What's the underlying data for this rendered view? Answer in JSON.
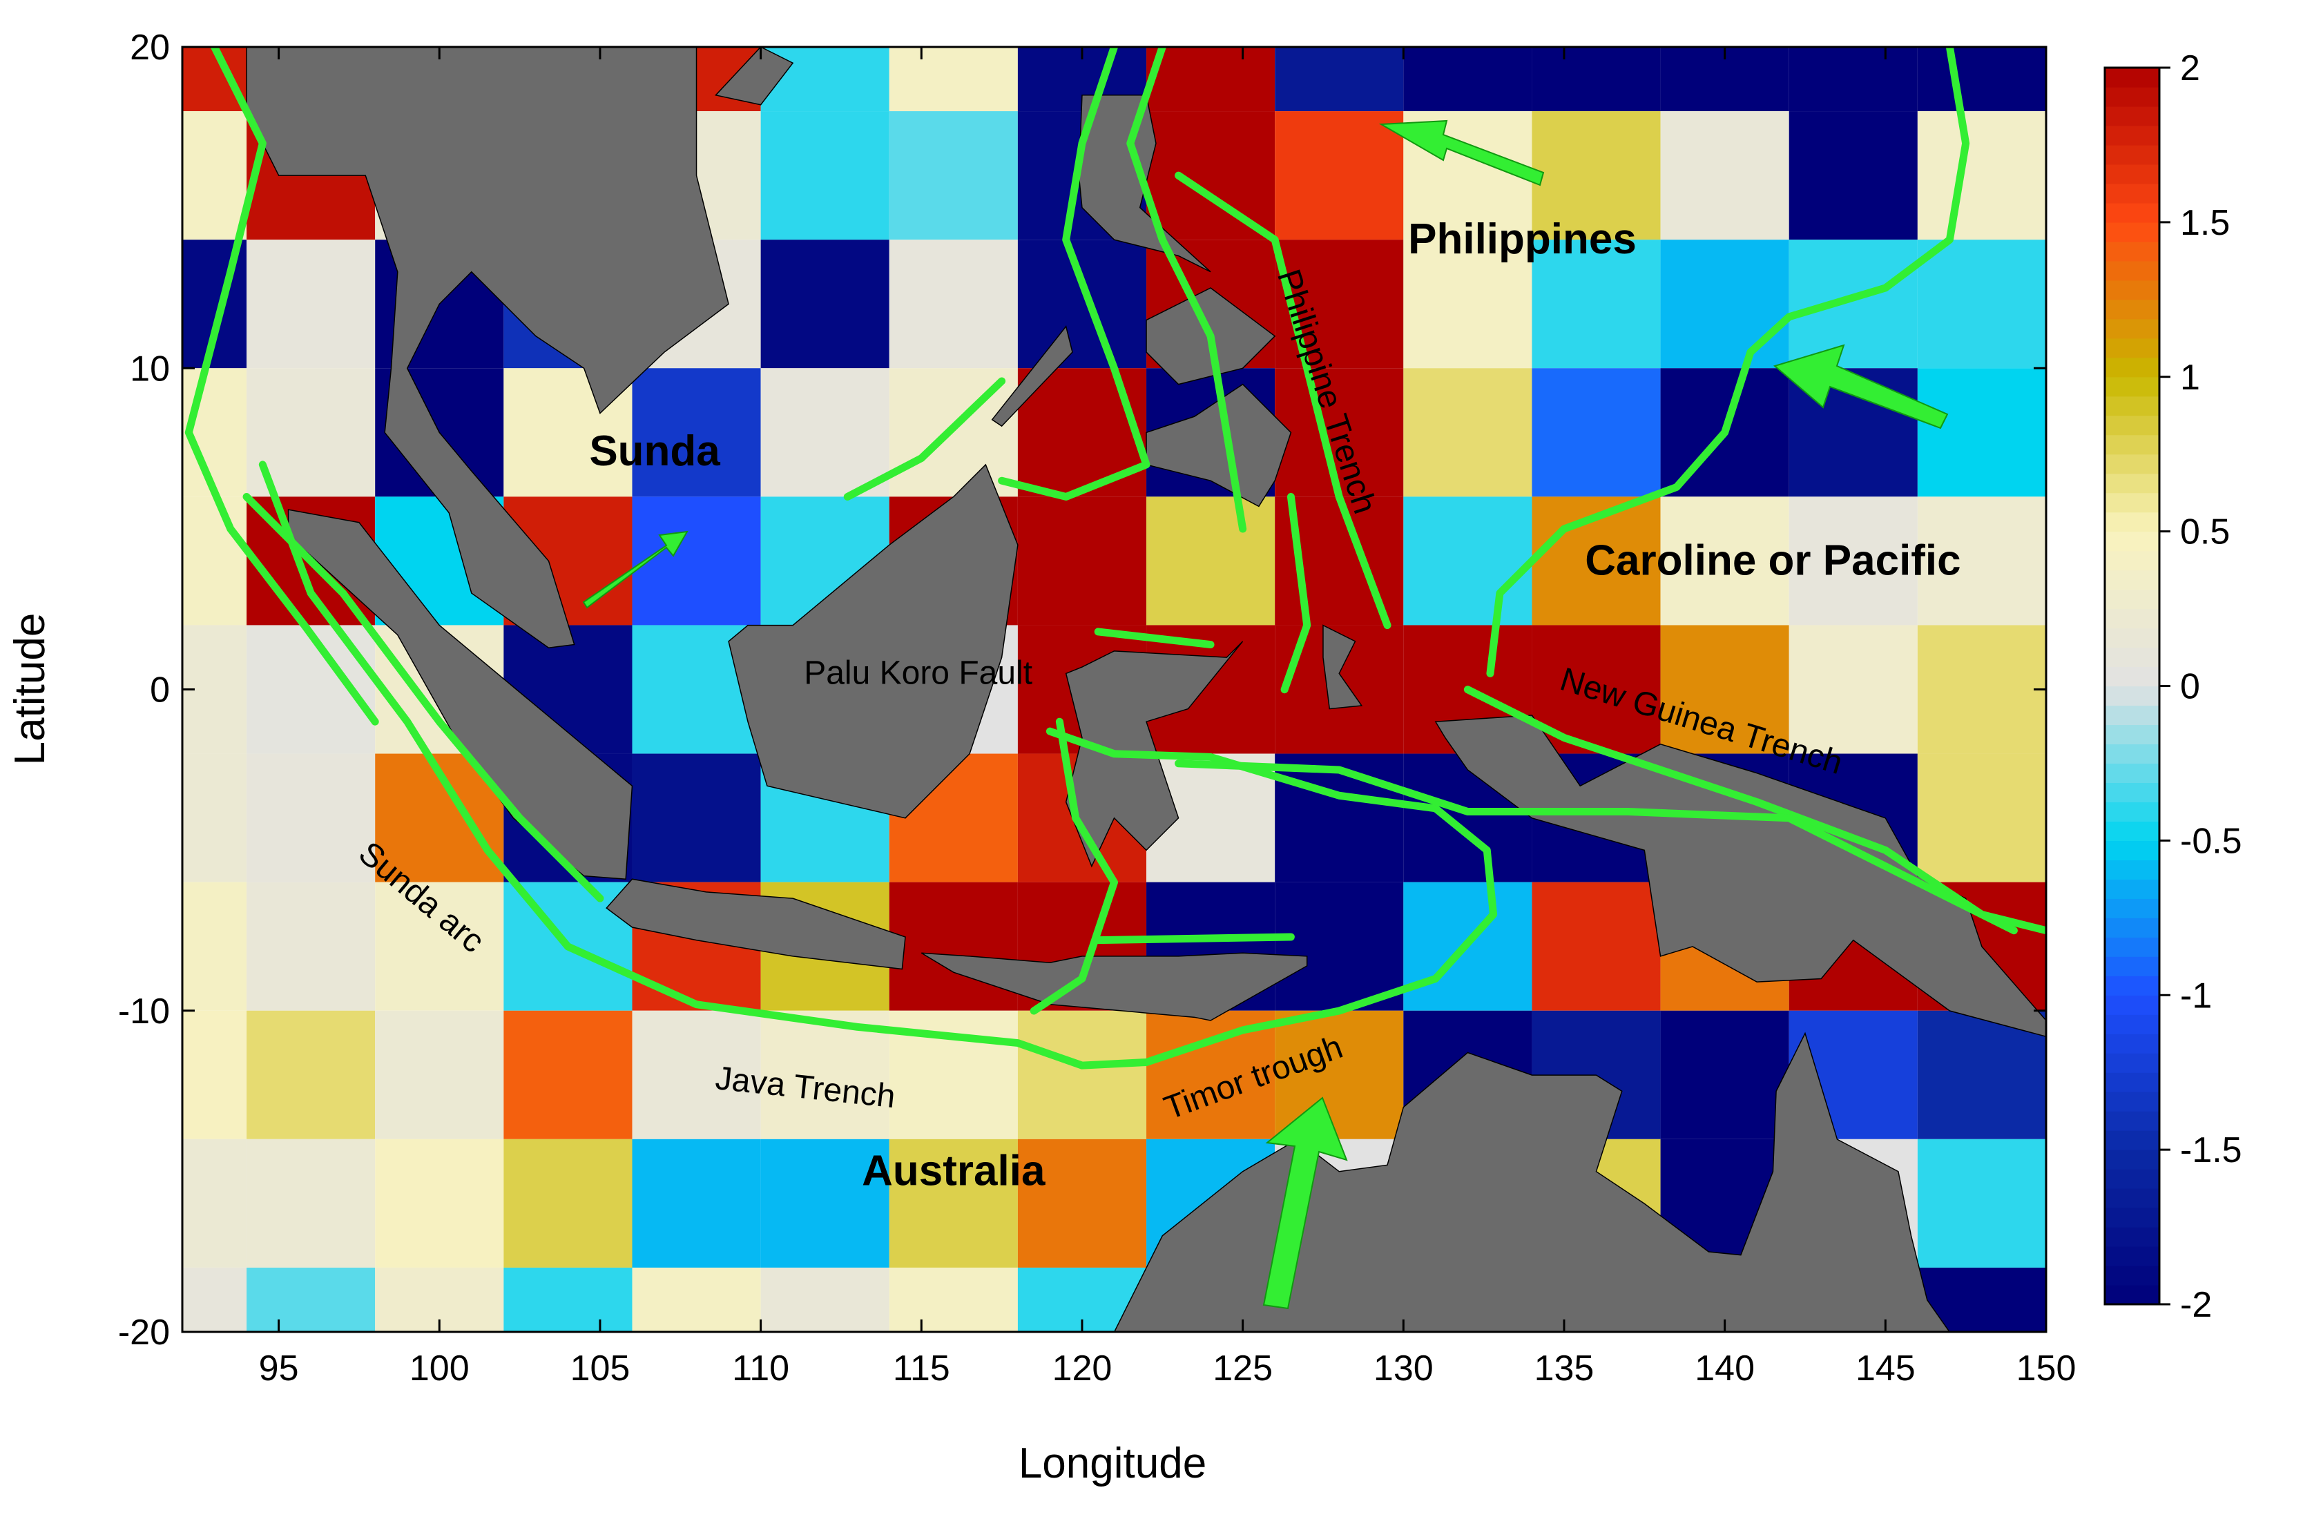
{
  "chart_data": {
    "type": "heatmap",
    "xlabel": "Longitude",
    "ylabel": "Latitude",
    "x_edges": [
      92,
      94,
      98,
      102,
      106,
      110,
      114,
      118,
      122,
      126,
      130,
      134,
      138,
      142,
      146,
      150
    ],
    "y_edges": [
      20,
      18,
      14,
      10,
      6,
      2,
      -2,
      -6,
      -10,
      -14,
      -18,
      -20
    ],
    "z": [
      [
        1.8,
        0,
        0,
        0,
        1.8,
        -0.4,
        0.4,
        -1.9,
        2,
        -1.7,
        -2,
        -2,
        -2,
        -2,
        -2
      ],
      [
        0.4,
        1.9,
        0.2,
        0.2,
        0.2,
        -0.4,
        -0.3,
        -1.9,
        2,
        1.6,
        0.4,
        0.8,
        0.15,
        -2,
        0.35
      ],
      [
        -1.9,
        0.1,
        -2,
        -1.4,
        0.1,
        -1.9,
        0.1,
        -1.9,
        2,
        2,
        0.4,
        -0.4,
        -0.6,
        -0.4,
        -0.4
      ],
      [
        0.4,
        0.15,
        -2,
        0.4,
        -1.3,
        0.1,
        0.3,
        2,
        -2,
        2,
        0.7,
        -0.9,
        -2,
        -1.8,
        -0.5
      ],
      [
        0.4,
        2,
        -0.5,
        1.8,
        -1,
        -0.4,
        2,
        2,
        0.8,
        2,
        -0.4,
        1.2,
        0.35,
        0.1,
        0.25
      ],
      [
        0.2,
        0.05,
        0.3,
        -1.9,
        -0.4,
        0,
        0,
        2,
        2,
        2,
        2,
        2,
        1.2,
        0.3,
        0.7
      ],
      [
        0.2,
        0.1,
        1.3,
        -1.9,
        -1.8,
        -0.4,
        1.4,
        1.8,
        0.1,
        -2,
        -2,
        -2,
        -2,
        -2,
        0.7
      ],
      [
        0.4,
        0.15,
        0.35,
        -0.4,
        1.7,
        0.9,
        2,
        2,
        -2,
        -2,
        -0.6,
        1.7,
        1.3,
        2,
        2
      ],
      [
        0.45,
        0.7,
        0.2,
        1.4,
        0.15,
        0.3,
        0.4,
        0.7,
        1.3,
        1.2,
        -2,
        -1.7,
        -2,
        -1.2,
        -1.5
      ],
      [
        0.2,
        0.2,
        0.45,
        0.8,
        -0.6,
        -0.6,
        0.8,
        1.3,
        -0.6,
        0,
        0,
        0.8,
        -2,
        0,
        -0.4
      ],
      [
        0.1,
        -0.3,
        0.3,
        -0.4,
        0.4,
        0.15,
        0.4,
        -0.4,
        0,
        0,
        0,
        0,
        0,
        0,
        -2
      ]
    ],
    "xlim": [
      92,
      150
    ],
    "ylim": [
      -20,
      20
    ],
    "xticks": [
      95,
      100,
      105,
      110,
      115,
      120,
      125,
      130,
      135,
      140,
      145,
      150
    ],
    "yticks": [
      -20,
      -10,
      0,
      10,
      20
    ],
    "colorbar": {
      "lim": [
        -2,
        2
      ],
      "ticks": [
        -2,
        -1.5,
        -1,
        -0.5,
        0,
        0.5,
        1,
        1.5,
        2
      ]
    },
    "annotations": [
      {
        "text": "Sunda"
      },
      {
        "text": "Philippines"
      },
      {
        "text": "Caroline or Pacific"
      },
      {
        "text": "Australia"
      },
      {
        "text": "Palu Koro Fault"
      },
      {
        "text": "Philippine Trench"
      },
      {
        "text": "New Guinea Trench"
      },
      {
        "text": "Sunda arc"
      },
      {
        "text": "Java Trench"
      },
      {
        "text": "Timor trough"
      }
    ]
  }
}
